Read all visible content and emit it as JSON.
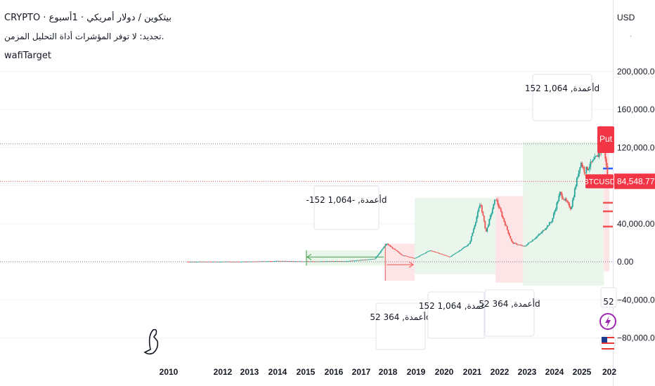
{
  "header": {
    "symbol_line": "CRYPTO · بيتكوين / دولار أمريكي · 1أسبوع",
    "note_line": "تجديد: لا توفر المؤشرات أداة التحليل المزمن.",
    "indicator": "wafiTarget"
  },
  "price_axis": {
    "currency": "USD",
    "ticks": [
      "200,000.00",
      "160,000.00",
      "120,000.00",
      "40,000.00",
      "0.00",
      "−40,000.00",
      "−80,000.00"
    ]
  },
  "time_axis": {
    "ticks": [
      "2010",
      "2012",
      "2013",
      "2014",
      "2015",
      "2016",
      "2017",
      "2018",
      "2019",
      "2020",
      "2021",
      "2022",
      "2023",
      "2024",
      "2025",
      "202"
    ]
  },
  "badges": {
    "symbol": "BTCUSD",
    "price": "84,548.77",
    "put": "Put"
  },
  "colors": {
    "up": "#26a69a",
    "down": "#ef5350",
    "zone_green": "#e8f5e9",
    "zone_red": "#fde2e4",
    "badge_red": "#f23645",
    "tool_green": "#43a047"
  },
  "chart_data": {
    "type": "candlestick",
    "symbol": "BTCUSD",
    "timeframe": "1W",
    "last_price": 84548.77,
    "y_axis_ticks": [
      200000,
      160000,
      120000,
      40000,
      0,
      -40000,
      -80000
    ],
    "x_axis_ticks": [
      "2010",
      "2012",
      "2013",
      "2014",
      "2015",
      "2016",
      "2017",
      "2018",
      "2019",
      "2020",
      "2021",
      "2022",
      "2023",
      "2024",
      "2025",
      "202"
    ],
    "approx_price_path": [
      {
        "t": 2010.7,
        "p": 0
      },
      {
        "t": 2013.0,
        "p": 100
      },
      {
        "t": 2014.0,
        "p": 800
      },
      {
        "t": 2015.0,
        "p": 300
      },
      {
        "t": 2016.5,
        "p": 650
      },
      {
        "t": 2017.5,
        "p": 3000
      },
      {
        "t": 2017.95,
        "p": 19000
      },
      {
        "t": 2018.5,
        "p": 7000
      },
      {
        "t": 2018.95,
        "p": 3500
      },
      {
        "t": 2019.5,
        "p": 12000
      },
      {
        "t": 2020.2,
        "p": 5000
      },
      {
        "t": 2020.9,
        "p": 19000
      },
      {
        "t": 2021.3,
        "p": 62000
      },
      {
        "t": 2021.5,
        "p": 31000
      },
      {
        "t": 2021.85,
        "p": 67000
      },
      {
        "t": 2022.45,
        "p": 20000
      },
      {
        "t": 2022.9,
        "p": 16000
      },
      {
        "t": 2023.5,
        "p": 30000
      },
      {
        "t": 2023.9,
        "p": 43000
      },
      {
        "t": 2024.2,
        "p": 72000
      },
      {
        "t": 2024.6,
        "p": 56000
      },
      {
        "t": 2024.95,
        "p": 105000
      },
      {
        "t": 2025.1,
        "p": 95000
      },
      {
        "t": 2025.55,
        "p": 110000
      },
      {
        "t": 2025.8,
        "p": 124000
      },
      {
        "t": 2025.95,
        "p": 84548.77
      }
    ],
    "zones": [
      {
        "type": "green",
        "start": 2015.0,
        "end": 2017.9,
        "low": -4000,
        "high": 12000,
        "label": "-152 أعمدة, -1,064d"
      },
      {
        "type": "red",
        "start": 2017.9,
        "end": 2018.95,
        "low": -20000,
        "high": 19000,
        "label": "52 أعمدة, 364d"
      },
      {
        "type": "green",
        "start": 2018.95,
        "end": 2021.85,
        "low": -13000,
        "high": 67000,
        "label": "152 أعمدة, 1,064d"
      },
      {
        "type": "red",
        "start": 2021.85,
        "end": 2022.85,
        "low": -22000,
        "high": 69000,
        "label": "52 أعمدة, 364d"
      },
      {
        "type": "green",
        "start": 2022.85,
        "end": 2025.8,
        "low": -25000,
        "high": 126000,
        "label": "152 أعمدة, 1,064d"
      },
      {
        "type": "red",
        "start": 2025.8,
        "end": 2026.0,
        "low": -10000,
        "high": 126000,
        "label": "52"
      }
    ],
    "horizontal_lines": [
      {
        "price": 124000,
        "style": "dotted",
        "color": "#787b86"
      },
      {
        "price": 84548.77,
        "style": "dotted",
        "color": "#ef5350"
      },
      {
        "price": 0,
        "style": "dotted",
        "color": "#787b86"
      }
    ]
  }
}
